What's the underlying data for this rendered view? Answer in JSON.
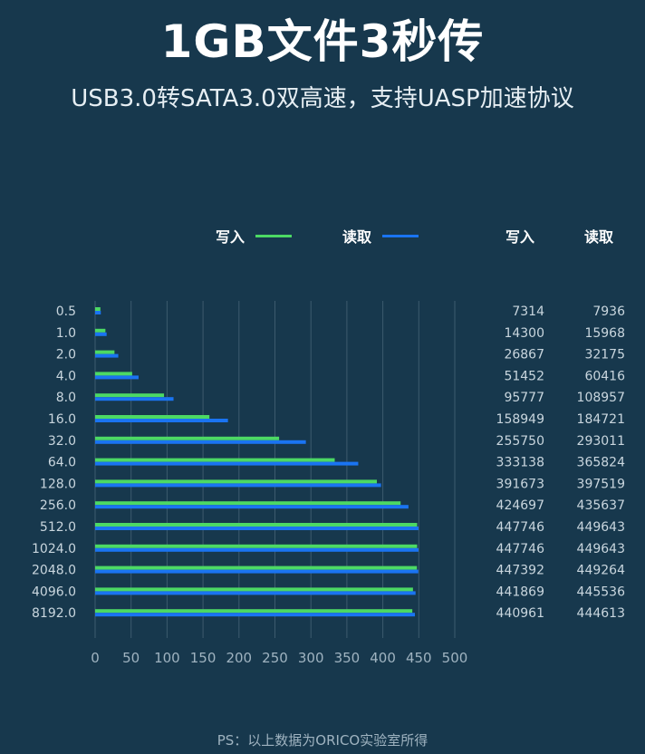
{
  "title": "1GB文件3秒传",
  "subtitle": "USB3.0转SATA3.0双高速，支持UASP加速协议",
  "legend": {
    "write_label": "写入",
    "read_label": "读取",
    "write_color": "#4cd964",
    "read_color": "#1a74f2"
  },
  "table_headers": {
    "write": "写入",
    "read": "读取"
  },
  "footer": "PS：以上数据为ORICO实验室所得",
  "chart_data": {
    "type": "bar",
    "orientation": "horizontal",
    "categories": [
      "0.5",
      "1.0",
      "2.0",
      "4.0",
      "8.0",
      "16.0",
      "32.0",
      "64.0",
      "128.0",
      "256.0",
      "512.0",
      "1024.0",
      "2048.0",
      "4096.0",
      "8192.0"
    ],
    "series": [
      {
        "name": "写入",
        "values": [
          7.3,
          14.3,
          26.9,
          51.5,
          95.8,
          158.9,
          255.8,
          333.1,
          391.7,
          424.7,
          447.7,
          447.7,
          447.4,
          441.9,
          441.0
        ]
      },
      {
        "name": "读取",
        "values": [
          7.9,
          16.0,
          32.2,
          60.4,
          109.0,
          184.7,
          293.0,
          365.8,
          397.5,
          435.6,
          449.6,
          449.6,
          449.3,
          445.5,
          444.6
        ]
      }
    ],
    "table_values": {
      "write": [
        "7314",
        "14300",
        "26867",
        "51452",
        "95777",
        "158949",
        "255750",
        "333138",
        "391673",
        "424697",
        "447746",
        "447746",
        "447392",
        "441869",
        "440961"
      ],
      "read": [
        "7936",
        "15968",
        "32175",
        "60416",
        "108957",
        "184721",
        "293011",
        "365824",
        "397519",
        "435637",
        "449643",
        "449643",
        "449264",
        "445536",
        "444613"
      ]
    },
    "x_ticks": [
      "0",
      "50",
      "100",
      "150",
      "200",
      "250",
      "300",
      "350",
      "400",
      "450",
      "500"
    ],
    "xlim": [
      0,
      500
    ],
    "grid": "vertical"
  }
}
